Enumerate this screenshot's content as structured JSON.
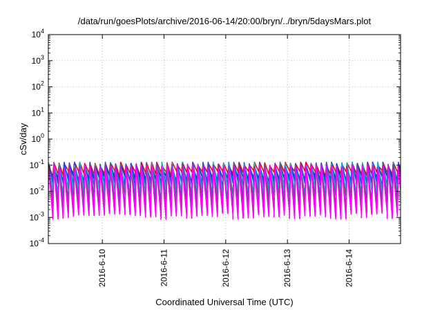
{
  "chart_data": {
    "type": "line",
    "title": "/data/run/goesPlots/archive/2016-06-14/20:00/bryn/../bryn/5daysMars.plot",
    "xlabel": "Coordinated Universal Time (UTC)",
    "ylabel": "cSv/day",
    "yscale": "log",
    "ylim": [
      0.0001,
      10000
    ],
    "xlim": [
      "2016-06-09T03:00",
      "2016-06-14T20:00"
    ],
    "y_ticks": [
      {
        "base": "10",
        "exp": "-4",
        "value": 0.0001
      },
      {
        "base": "10",
        "exp": "-3",
        "value": 0.001
      },
      {
        "base": "10",
        "exp": "-2",
        "value": 0.01
      },
      {
        "base": "10",
        "exp": "-1",
        "value": 0.1
      },
      {
        "base": "10",
        "exp": "0",
        "value": 1
      },
      {
        "base": "10",
        "exp": "1",
        "value": 10
      },
      {
        "base": "10",
        "exp": "2",
        "value": 100
      },
      {
        "base": "10",
        "exp": "3",
        "value": 1000
      },
      {
        "base": "10",
        "exp": "4",
        "value": 10000
      }
    ],
    "x_ticks": [
      {
        "label": "2016-6-10",
        "value": "2016-06-10T00:00"
      },
      {
        "label": "2016-6-11",
        "value": "2016-06-11T00:00"
      },
      {
        "label": "2016-6-12",
        "value": "2016-06-12T00:00"
      },
      {
        "label": "2016-6-13",
        "value": "2016-06-13T00:00"
      },
      {
        "label": "2016-6-14",
        "value": "2016-06-14T00:00"
      }
    ],
    "grid": true,
    "pattern": {
      "description": "sawtooth, period 2 hours",
      "period_hours": 2,
      "peak_max": 0.13
    },
    "series": [
      {
        "color": "#ff00ff",
        "peak": 0.09,
        "trough": 0.0012
      },
      {
        "color": "#a030a0",
        "peak": 0.08,
        "trough": 0.002
      },
      {
        "color": "#7040a0",
        "peak": 0.1,
        "trough": 0.003
      },
      {
        "color": "#208080",
        "peak": 0.07,
        "trough": 0.006
      },
      {
        "color": "#00c0c0",
        "peak": 0.11,
        "trough": 0.01
      },
      {
        "color": "#2040ff",
        "peak": 0.12,
        "trough": 0.02
      },
      {
        "color": "#1030c0",
        "peak": 0.1,
        "trough": 0.03
      },
      {
        "color": "#ff0000",
        "peak": 0.12,
        "trough": 0.05
      }
    ]
  }
}
